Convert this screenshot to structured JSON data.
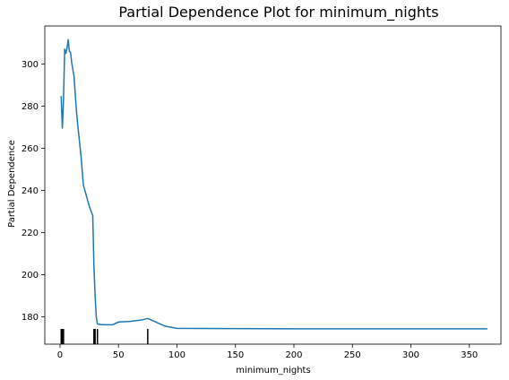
{
  "chart_data": {
    "type": "line",
    "title": "Partial Dependence Plot for minimum_nights",
    "xlabel": "minimum_nights",
    "ylabel": "Partial Dependence",
    "xlim": [
      -13,
      377
    ],
    "ylim": [
      167,
      318
    ],
    "xticks": [
      0,
      50,
      100,
      150,
      200,
      250,
      300,
      350
    ],
    "yticks": [
      180,
      200,
      220,
      240,
      260,
      280,
      300
    ],
    "grid": false,
    "line_color": "#1f77b4",
    "series": [
      {
        "x": [
          1,
          2,
          3,
          4,
          5,
          6,
          7,
          8,
          9,
          10,
          12,
          14,
          15,
          18,
          20,
          21,
          25,
          28,
          29,
          30,
          31,
          32,
          35,
          40,
          45,
          50,
          60,
          70,
          75,
          80,
          90,
          100,
          150,
          200,
          300,
          365
        ],
        "y": [
          284.5,
          269.5,
          283,
          307,
          305,
          307.5,
          311.5,
          306,
          305.5,
          300.5,
          294,
          278,
          272,
          256,
          242.5,
          240.5,
          232.5,
          228,
          204,
          190,
          180,
          176.5,
          176.3,
          176.2,
          176.2,
          177.5,
          177.8,
          178.5,
          179.2,
          178,
          175.5,
          174.5,
          174.4,
          174.3,
          174.3,
          174.3
        ]
      }
    ],
    "rug_x": [
      1,
      2,
      3,
      29,
      30,
      32,
      75
    ]
  }
}
